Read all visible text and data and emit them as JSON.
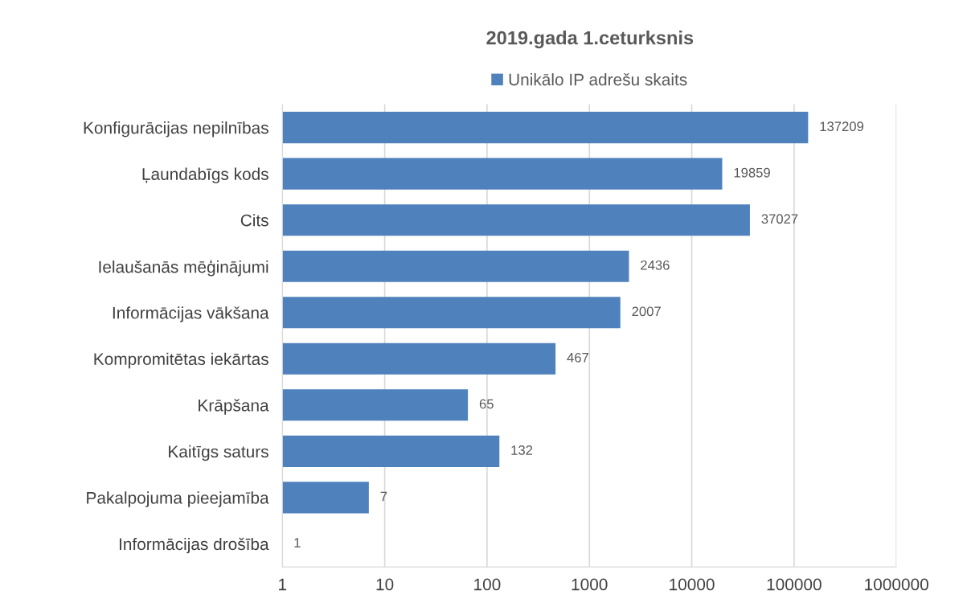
{
  "chart_data": {
    "type": "bar",
    "orientation": "horizontal",
    "title": "2019.gada 1.ceturksnis",
    "categories": [
      "Konfigurācijas nepilnības",
      "Ļaundabīgs kods",
      "Cits",
      "Ielaušanās mēģinājumi",
      "Informācijas vākšana",
      "Kompromitētas iekārtas",
      "Krāpšana",
      "Kaitīgs saturs",
      "Pakalpojuma pieejamība",
      "Informācijas drošība"
    ],
    "series": [
      {
        "name": "Unikālo IP adrešu skaits",
        "color": "#4f81bd",
        "values": [
          137209,
          19859,
          37027,
          2436,
          2007,
          467,
          65,
          132,
          7,
          1
        ]
      }
    ],
    "log": "x",
    "xlim": [
      1,
      1000000
    ],
    "xticks": [
      1,
      10,
      100,
      1000,
      10000,
      100000,
      1000000
    ],
    "grid": "x",
    "legend": "top",
    "data_labels": true
  }
}
